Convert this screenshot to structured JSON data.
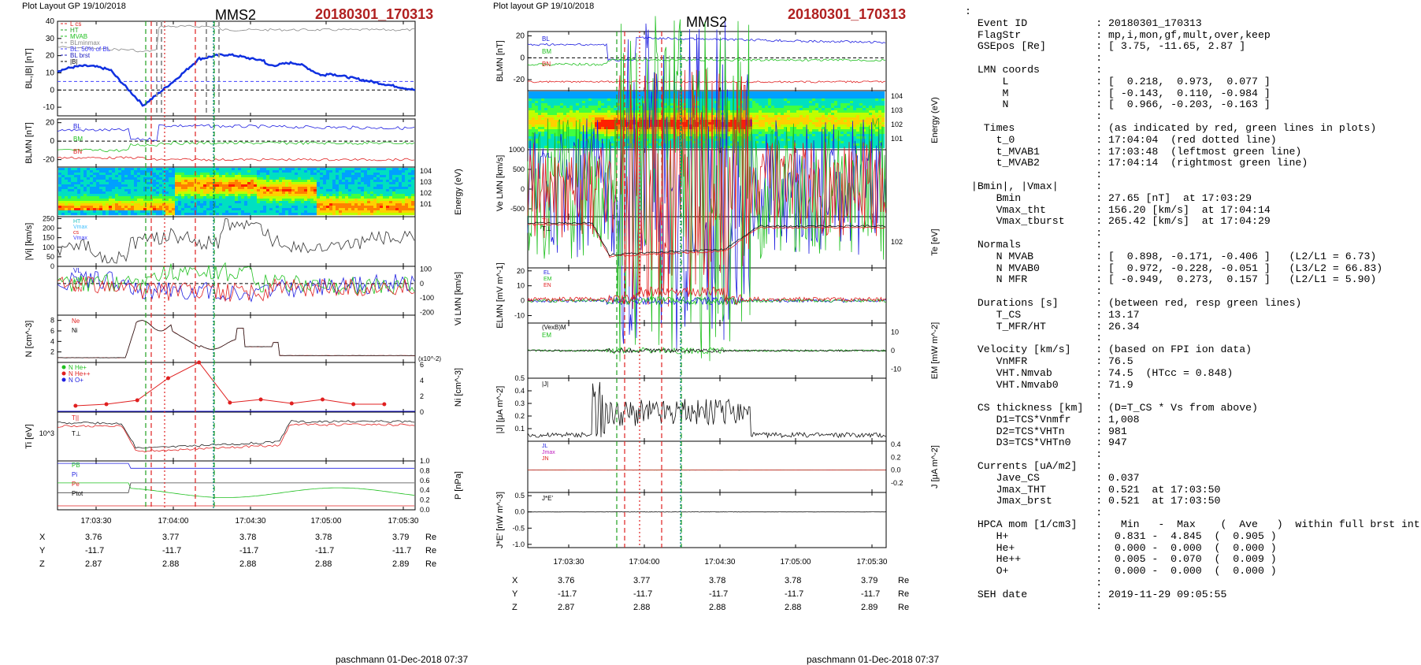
{
  "left": {
    "layout_label": "Plot Layout GP 19/10/2018",
    "spacecraft": "MMS2",
    "event": "20180301_170313",
    "footer": "paschmann 01-Dec-2018 07:37",
    "time_ticks": [
      "17:03:30",
      "17:04:00",
      "17:04:30",
      "17:05:00",
      "17:05:30"
    ],
    "coord_rows": [
      {
        "label": "X",
        "values": [
          "3.76",
          "3.77",
          "3.78",
          "3.78",
          "3.79"
        ],
        "unit": "Re"
      },
      {
        "label": "Y",
        "values": [
          "-11.7",
          "-11.7",
          "-11.7",
          "-11.7",
          "-11.7"
        ],
        "unit": "Re"
      },
      {
        "label": "Z",
        "values": [
          "2.87",
          "2.88",
          "2.88",
          "2.88",
          "2.89"
        ],
        "unit": "Re"
      }
    ]
  },
  "right": {
    "layout_label": "Plot layout GP 19/10/2018",
    "spacecraft": "MMS2",
    "event": "20180301_170313",
    "footer": "paschmann 01-Dec-2018 07:37",
    "time_ticks": [
      "17:03:30",
      "17:04:00",
      "17:04:30",
      "17:05:00",
      "17:05:30"
    ],
    "coord_rows": [
      {
        "label": "X",
        "values": [
          "3.76",
          "3.77",
          "3.78",
          "3.78",
          "3.79"
        ],
        "unit": "Re"
      },
      {
        "label": "Y",
        "values": [
          "-11.7",
          "-11.7",
          "-11.7",
          "-11.7",
          "-11.7"
        ],
        "unit": "Re"
      },
      {
        "label": "Z",
        "values": [
          "2.87",
          "2.88",
          "2.88",
          "2.88",
          "2.89"
        ],
        "unit": "Re"
      }
    ]
  },
  "info_lines": [
    ":",
    "  Event ID           : 20180301_170313",
    "  FlagStr            : mp,i,mon,gf,mult,over,keep",
    "  GSEpos [Re]        : [ 3.75, -11.65, 2.87 ]",
    "                     :",
    "  LMN coords         :",
    "      L              : [  0.218,  0.973,  0.077 ]",
    "      M              : [ -0.143,  0.110, -0.984 ]",
    "      N              : [  0.966, -0.203, -0.163 ]",
    "                     :",
    "   Times             : (as indicated by red, green lines in plots)",
    "     t_0             : 17:04:04  (red dotted line)",
    "     t_MVAB1         : 17:03:48  (leftmost green line)",
    "     t_MVAB2         : 17:04:14  (rightmost green line)",
    "                     :",
    " |Bmin|, |Vmax|      :",
    "     Bmin            : 27.65 [nT]  at 17:03:29",
    "     Vmax_tht        : 156.20 [km/s]  at 17:04:14",
    "     Vmax_tburst     : 265.42 [km/s]  at 17:04:29",
    "                     :",
    "  Normals            :",
    "     N MVAB          : [  0.898, -0.171, -0.406 ]   (L2/L1 = 6.73)",
    "     N MVAB0         : [  0.972, -0.228, -0.051 ]   (L3/L2 = 66.83)",
    "     N MFR           : [ -0.949,  0.273,  0.157 ]   (L2/L1 = 5.90)",
    "                     :",
    "  Durations [s]      : (between red, resp green lines)",
    "     T_CS            : 13.17",
    "     T_MFR/HT        : 26.34",
    "                     :",
    "  Velocity [km/s]    : (based on FPI ion data)",
    "     VnMFR           : 76.5",
    "     VHT.Nmvab       : 74.5  (HTcc = 0.848)",
    "     VHT.Nmvab0      : 71.9",
    "                     :",
    "  CS thickness [km]  : (D=T_CS * Vs from above)",
    "     D1=TCS*Vnmfr    : 1,008",
    "     D2=TCS*VHTn     : 981",
    "     D3=TCS*VHTn0    : 947",
    "                     :",
    "  Currents [uA/m2]   :",
    "     Jave_CS         : 0.037",
    "     Jmax_THT        : 0.521  at 17:03:50",
    "     Jmax_brst       : 0.521  at 17:03:50",
    "                     :",
    "  HPCA mom [1/cm3]   :   Min   -  Max    (  Ave   )  within full brst int",
    "     H+              :  0.831 -  4.845  (  0.905 )",
    "     He+             :  0.000 -  0.000  (  0.000 )",
    "     He++            :  0.005 -  0.070  (  0.009 )",
    "     O+              :  0.000 -  0.000  (  0.000 )",
    "                     :",
    "  SEH date           : 2019-11-29 09:05:55",
    "                     :"
  ],
  "chart_data": [
    {
      "type": "line",
      "figure": "left",
      "panels": [
        {
          "id": "bl",
          "ylabel": "BL,|B| [nT]",
          "yticks": [
            "40",
            "30",
            "20",
            "10",
            "0",
            "-10"
          ],
          "legend": [
            "L cs",
            "HT",
            "MVAB",
            "BLminmax",
            "BL: 50% of BL",
            "BL brst",
            "|B|"
          ],
          "legend_colors": [
            "#e02020",
            "#20a020",
            "#20c020",
            "#888888",
            "#4040ff",
            "#2020c0",
            "#000000"
          ],
          "ylim": [
            -15,
            40
          ]
        },
        {
          "id": "blmn",
          "ylabel": "BLMN [nT]",
          "yticks": [
            "20",
            "0",
            "-20"
          ],
          "legend": [
            "BL",
            "BM",
            "BN"
          ],
          "legend_colors": [
            "#2020e0",
            "#20c020",
            "#e02020"
          ],
          "ylim": [
            -28,
            24
          ]
        },
        {
          "id": "spec",
          "ylabel": "Energy (eV)",
          "yticks_right": [
            "10^4",
            "10^3",
            "10^2",
            "10^1"
          ],
          "type": "spectrogram"
        },
        {
          "id": "vi",
          "ylabel": "|Vi| [km/s]",
          "yticks": [
            "250",
            "200",
            "150",
            "100",
            "50",
            "0"
          ],
          "legend": [
            "HT",
            "Vmax",
            "cs",
            "Vmax"
          ],
          "legend_colors": [
            "#20c0c0",
            "#40c0ff",
            "#e02020",
            "#4040ff"
          ],
          "ylim": [
            0,
            260
          ]
        },
        {
          "id": "vilmn",
          "ylabel": "Vi LMN [km/s]",
          "yticks_right": [
            "100",
            "0",
            "-100",
            "-200"
          ],
          "legend": [
            "VL",
            "VM",
            "VN"
          ],
          "legend_colors": [
            "#2020e0",
            "#20c020",
            "#e02020"
          ],
          "ylim": [
            -220,
            120
          ]
        },
        {
          "id": "n",
          "ylabel": "N [cm^-3]",
          "yticks": [
            "8",
            "6",
            "4",
            "2"
          ],
          "legend": [
            "Ne",
            "Ni"
          ],
          "legend_colors": [
            "#e02020",
            "#000000"
          ],
          "ylim": [
            0,
            9
          ]
        },
        {
          "id": "ni",
          "ylabel": "Ni [cm^-3]",
          "yticks_right": [
            "6",
            "4",
            "2",
            "0"
          ],
          "scale_note": "(x10^-2)",
          "legend": [
            "N He+",
            "N He++",
            "N O+"
          ],
          "legend_colors": [
            "#20c020",
            "#e02020",
            "#2020e0"
          ],
          "ylim": [
            0,
            6.3
          ],
          "series": [
            {
              "name": "N He++",
              "x": [
                "17:03:22",
                "17:03:34",
                "17:03:46",
                "17:03:58",
                "17:04:10",
                "17:04:22",
                "17:04:34",
                "17:04:46",
                "17:04:58",
                "17:05:10",
                "17:05:22"
              ],
              "values": [
                0.8,
                1.0,
                1.5,
                4.3,
                6.3,
                1.2,
                1.6,
                1.1,
                1.6,
                1.0,
                1.0
              ]
            }
          ]
        },
        {
          "id": "ti",
          "ylabel": "Ti [eV]",
          "yticks": [
            "10^3"
          ],
          "legend": [
            "T||",
            "T⊥"
          ],
          "legend_colors": [
            "#e02020",
            "#000000"
          ]
        },
        {
          "id": "p",
          "ylabel": "P [nPa]",
          "yticks_right": [
            "1.0",
            "0.8",
            "0.6",
            "0.4",
            "0.2",
            "0.0"
          ],
          "legend": [
            "PB",
            "Pi",
            "Pe",
            "Ptot"
          ],
          "legend_colors": [
            "#20c020",
            "#2020e0",
            "#e02020",
            "#000000"
          ],
          "ylim": [
            0,
            1.0
          ]
        }
      ],
      "vertical_markers": {
        "red_dashed": [
          "17:03:52",
          "17:04:16"
        ],
        "red_dotted": [
          "17:04:04"
        ],
        "green_dashed": [
          "17:03:48",
          "17:04:14"
        ],
        "teal_dotted": [
          "17:04:14"
        ]
      }
    },
    {
      "type": "line",
      "figure": "right",
      "panels": [
        {
          "id": "blmn",
          "ylabel": "BLMN [nT]",
          "yticks": [
            "20",
            "0",
            "-20"
          ],
          "legend": [
            "BL",
            "BM",
            "BN"
          ],
          "legend_colors": [
            "#2020e0",
            "#20c020",
            "#e02020"
          ],
          "ylim": [
            -30,
            24
          ]
        },
        {
          "id": "espec",
          "ylabel": "Energy (eV)",
          "yticks_right": [
            "10^4",
            "10^3",
            "10^2",
            "10^1"
          ],
          "type": "spectrogram"
        },
        {
          "id": "ve",
          "ylabel": "Ve LMN [km/s]",
          "yticks": [
            "1000",
            "500",
            "0",
            "-500"
          ],
          "legend": [
            "VL",
            "VM",
            "VN"
          ],
          "legend_colors": [
            "#2020e0",
            "#20c020",
            "#e02020"
          ],
          "ylim": [
            -700,
            1000
          ]
        },
        {
          "id": "te",
          "ylabel": "Te [eV]",
          "yticks_right": [
            "10^2"
          ],
          "legend": [
            "T||",
            "T⊥"
          ],
          "legend_colors": [
            "#e02020",
            "#000000"
          ]
        },
        {
          "id": "e",
          "ylabel": "ELMN [mV m^-1]",
          "yticks": [
            "20",
            "10",
            "0",
            "-10"
          ],
          "legend": [
            "EL",
            "EM",
            "EN"
          ],
          "legend_colors": [
            "#2020e0",
            "#20c020",
            "#e02020"
          ],
          "ylim": [
            -15,
            22
          ]
        },
        {
          "id": "em",
          "ylabel": "EM [mW m^-2]",
          "yticks_right": [
            "10",
            "0",
            "-10"
          ],
          "legend": [
            "(VexB)M",
            "EM"
          ],
          "legend_colors": [
            "#000000",
            "#20c020"
          ],
          "ylim": [
            -15,
            15
          ]
        },
        {
          "id": "j",
          "ylabel": "|J| [μA m^-2]",
          "yticks": [
            "0.5",
            "0.4",
            "0.3",
            "0.2",
            "0.1"
          ],
          "legend": [
            "|J|"
          ],
          "legend_colors": [
            "#000000"
          ],
          "ylim": [
            0,
            0.5
          ]
        },
        {
          "id": "jlmn",
          "ylabel": "J [μA m^-2]",
          "yticks_right": [
            "0.4",
            "0.2",
            "0.0",
            "-0.2"
          ],
          "legend": [
            "JL",
            "Jmax",
            "JN"
          ],
          "legend_colors": [
            "#2020e0",
            "#c020c0",
            "#e02020"
          ],
          "ylim": [
            -0.35,
            0.45
          ]
        },
        {
          "id": "je",
          "ylabel": "J*E' [nW m^-3]",
          "yticks": [
            "0.5",
            "0.0",
            "-0.5",
            "-1.0"
          ],
          "legend": [
            "J*E'"
          ],
          "legend_colors": [
            "#000000"
          ],
          "ylim": [
            -1.1,
            0.6
          ]
        }
      ],
      "vertical_markers": {
        "red_dashed": [
          "17:03:52",
          "17:04:16"
        ],
        "red_dotted": [
          "17:04:04"
        ],
        "green_dashed": [
          "17:03:48",
          "17:04:14"
        ],
        "teal_dotted": [
          "17:04:14"
        ]
      }
    }
  ]
}
